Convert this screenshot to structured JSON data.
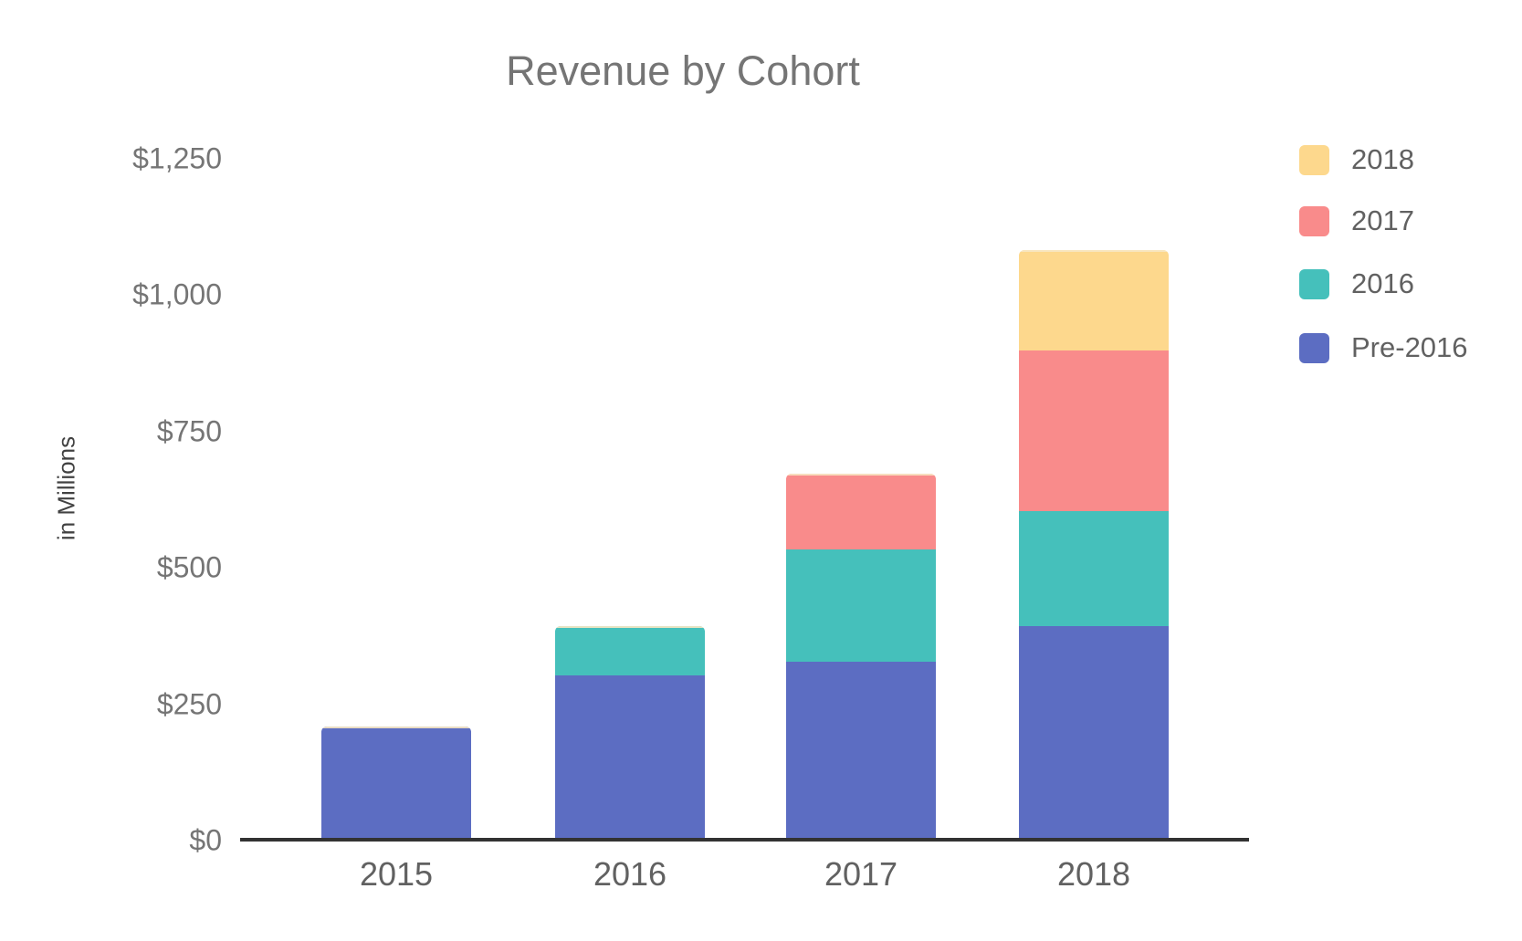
{
  "title": "Revenue by Cohort",
  "y_axis": {
    "title": "in Millions",
    "ticks": [
      "$0",
      "$250",
      "$500",
      "$750",
      "$1,000",
      "$1,250"
    ],
    "tick_values": [
      0,
      250,
      500,
      750,
      1000,
      1250
    ]
  },
  "x_axis": {
    "labels": [
      "2015",
      "2016",
      "2017",
      "2018"
    ]
  },
  "legend": {
    "items": [
      "2018",
      "2017",
      "2016",
      "Pre-2016"
    ],
    "position": "right-top"
  },
  "chart_data": {
    "type": "bar",
    "stacked": true,
    "title": "Revenue by Cohort",
    "xlabel": "",
    "ylabel": "in Millions",
    "ylim": [
      0,
      1250
    ],
    "y_tick_step": 250,
    "grid": false,
    "legend_position": "right-top",
    "categories": [
      "2015",
      "2016",
      "2017",
      "2018"
    ],
    "series": [
      {
        "name": "Pre-2016",
        "color": "#5C6DC2",
        "values": [
          205,
          300,
          325,
          390
        ]
      },
      {
        "name": "2016",
        "color": "#45C0BB",
        "values": [
          0,
          90,
          205,
          210
        ]
      },
      {
        "name": "2017",
        "color": "#F98B8B",
        "values": [
          0,
          0,
          140,
          295
        ]
      },
      {
        "name": "2018",
        "color": "#FDD88D",
        "values": [
          0,
          0,
          0,
          185
        ]
      }
    ],
    "totals": [
      205,
      390,
      670,
      1080
    ]
  },
  "colors": {
    "background": "#FFFFFF",
    "axis_line": "#323232",
    "title_text": "#757575",
    "y_tick_text": "#757575",
    "x_label_text": "#616161",
    "legend_text": "#616161",
    "y_title_text": "#424242",
    "bar_cap_line": "#F7E7C3",
    "series_pre2016": "#5C6DC2",
    "series_2016": "#45C0BB",
    "series_2017": "#F98B8B",
    "series_2018": "#FDD88D"
  }
}
